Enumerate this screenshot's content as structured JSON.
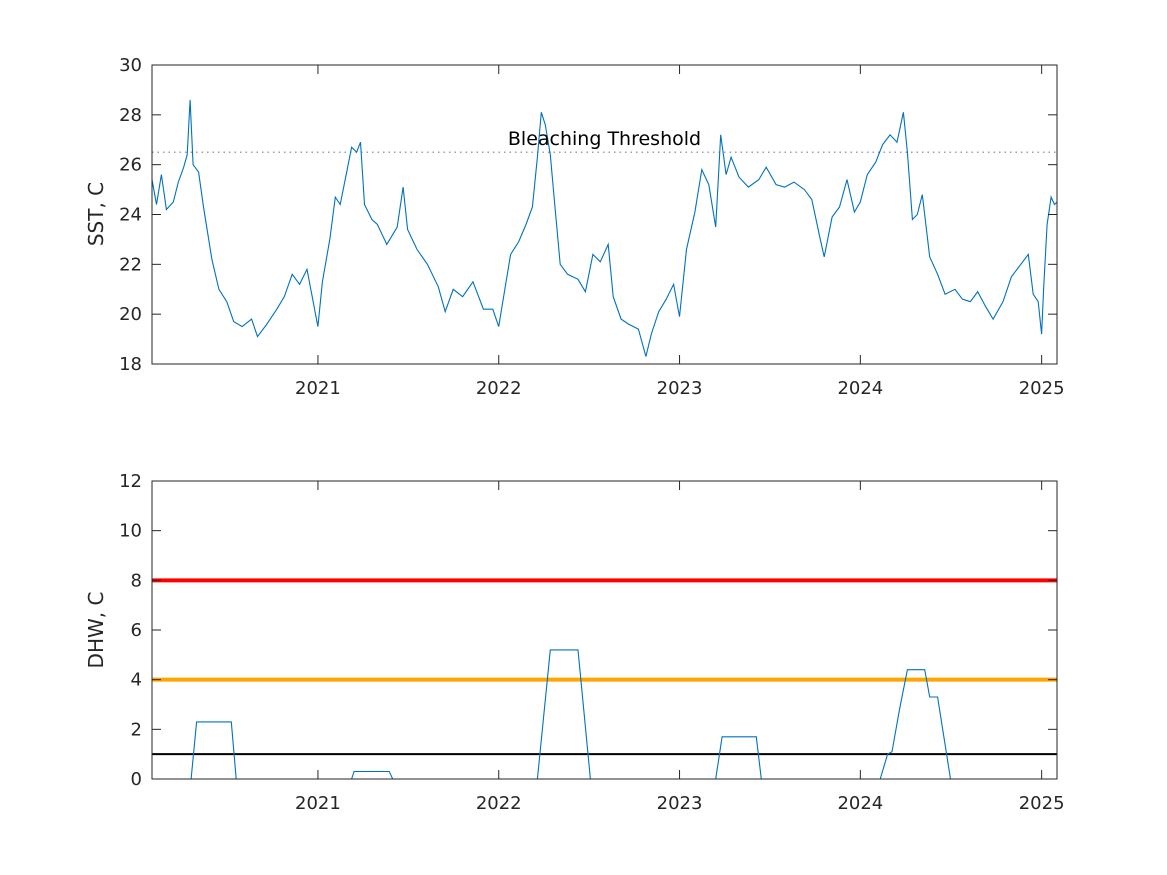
{
  "chart_data": [
    {
      "type": "line",
      "ylabel": "SST, C",
      "xlabel": "",
      "title": "",
      "xlim": [
        "2020-02-01",
        "2025-02-01"
      ],
      "ylim": [
        18,
        30
      ],
      "x_ticks": [
        "2021",
        "2022",
        "2023",
        "2024",
        "2025"
      ],
      "y_ticks": [
        "18",
        "20",
        "22",
        "24",
        "26",
        "28",
        "30"
      ],
      "grid": false,
      "series": [
        {
          "color": "#0072BD",
          "points": [
            [
              "2020-02-01",
              25.4
            ],
            [
              "2020-02-10",
              24.4
            ],
            [
              "2020-02-20",
              25.6
            ],
            [
              "2020-03-01",
              24.2
            ],
            [
              "2020-03-15",
              24.5
            ],
            [
              "2020-03-25",
              25.3
            ],
            [
              "2020-04-05",
              25.9
            ],
            [
              "2020-04-12",
              26.4
            ],
            [
              "2020-04-18",
              28.6
            ],
            [
              "2020-04-24",
              26.0
            ],
            [
              "2020-05-05",
              25.7
            ],
            [
              "2020-05-15",
              24.3
            ],
            [
              "2020-06-01",
              22.2
            ],
            [
              "2020-06-15",
              21.0
            ],
            [
              "2020-07-01",
              20.5
            ],
            [
              "2020-07-15",
              19.7
            ],
            [
              "2020-08-01",
              19.5
            ],
            [
              "2020-08-20",
              19.8
            ],
            [
              "2020-09-01",
              19.1
            ],
            [
              "2020-09-20",
              19.6
            ],
            [
              "2020-10-10",
              20.2
            ],
            [
              "2020-10-25",
              20.7
            ],
            [
              "2020-11-10",
              21.6
            ],
            [
              "2020-11-25",
              21.2
            ],
            [
              "2020-12-10",
              21.8
            ],
            [
              "2021-01-01",
              19.5
            ],
            [
              "2021-01-10",
              21.3
            ],
            [
              "2021-01-25",
              23.0
            ],
            [
              "2021-02-05",
              24.7
            ],
            [
              "2021-02-15",
              24.4
            ],
            [
              "2021-02-28",
              25.7
            ],
            [
              "2021-03-10",
              26.7
            ],
            [
              "2021-03-20",
              26.5
            ],
            [
              "2021-03-28",
              26.9
            ],
            [
              "2021-04-05",
              24.4
            ],
            [
              "2021-04-20",
              23.8
            ],
            [
              "2021-05-01",
              23.6
            ],
            [
              "2021-05-20",
              22.8
            ],
            [
              "2021-06-10",
              23.5
            ],
            [
              "2021-06-22",
              25.1
            ],
            [
              "2021-07-01",
              23.4
            ],
            [
              "2021-07-20",
              22.6
            ],
            [
              "2021-08-10",
              22.0
            ],
            [
              "2021-09-01",
              21.1
            ],
            [
              "2021-09-15",
              20.1
            ],
            [
              "2021-10-01",
              21.0
            ],
            [
              "2021-10-20",
              20.7
            ],
            [
              "2021-11-10",
              21.3
            ],
            [
              "2021-12-01",
              20.2
            ],
            [
              "2021-12-20",
              20.2
            ],
            [
              "2022-01-01",
              19.5
            ],
            [
              "2022-01-10",
              20.6
            ],
            [
              "2022-01-25",
              22.4
            ],
            [
              "2022-02-10",
              22.9
            ],
            [
              "2022-02-25",
              23.6
            ],
            [
              "2022-03-10",
              24.3
            ],
            [
              "2022-03-20",
              26.3
            ],
            [
              "2022-03-28",
              28.1
            ],
            [
              "2022-04-05",
              27.6
            ],
            [
              "2022-04-15",
              26.4
            ],
            [
              "2022-04-25",
              24.2
            ],
            [
              "2022-05-05",
              22.0
            ],
            [
              "2022-05-20",
              21.6
            ],
            [
              "2022-06-10",
              21.4
            ],
            [
              "2022-06-25",
              20.9
            ],
            [
              "2022-07-10",
              22.4
            ],
            [
              "2022-07-25",
              22.1
            ],
            [
              "2022-08-10",
              22.8
            ],
            [
              "2022-08-20",
              20.7
            ],
            [
              "2022-09-05",
              19.8
            ],
            [
              "2022-09-20",
              19.6
            ],
            [
              "2022-10-10",
              19.4
            ],
            [
              "2022-10-25",
              18.3
            ],
            [
              "2022-11-05",
              19.2
            ],
            [
              "2022-11-20",
              20.1
            ],
            [
              "2022-12-05",
              20.6
            ],
            [
              "2022-12-20",
              21.2
            ],
            [
              "2023-01-01",
              19.9
            ],
            [
              "2023-01-15",
              22.6
            ],
            [
              "2023-02-01",
              24.1
            ],
            [
              "2023-02-15",
              25.8
            ],
            [
              "2023-03-01",
              25.2
            ],
            [
              "2023-03-15",
              23.5
            ],
            [
              "2023-03-25",
              27.2
            ],
            [
              "2023-04-05",
              25.6
            ],
            [
              "2023-04-15",
              26.3
            ],
            [
              "2023-05-01",
              25.5
            ],
            [
              "2023-05-20",
              25.1
            ],
            [
              "2023-06-10",
              25.4
            ],
            [
              "2023-06-25",
              25.9
            ],
            [
              "2023-07-15",
              25.2
            ],
            [
              "2023-08-01",
              25.1
            ],
            [
              "2023-08-20",
              25.3
            ],
            [
              "2023-09-10",
              25.0
            ],
            [
              "2023-09-25",
              24.6
            ],
            [
              "2023-10-10",
              23.2
            ],
            [
              "2023-10-20",
              22.3
            ],
            [
              "2023-11-05",
              23.9
            ],
            [
              "2023-11-20",
              24.3
            ],
            [
              "2023-12-05",
              25.4
            ],
            [
              "2023-12-20",
              24.1
            ],
            [
              "2024-01-01",
              24.5
            ],
            [
              "2024-01-15",
              25.6
            ],
            [
              "2024-02-01",
              26.1
            ],
            [
              "2024-02-15",
              26.8
            ],
            [
              "2024-03-01",
              27.2
            ],
            [
              "2024-03-15",
              26.9
            ],
            [
              "2024-03-28",
              28.1
            ],
            [
              "2024-04-05",
              26.5
            ],
            [
              "2024-04-15",
              23.8
            ],
            [
              "2024-04-25",
              24.0
            ],
            [
              "2024-05-05",
              24.8
            ],
            [
              "2024-05-20",
              22.3
            ],
            [
              "2024-06-05",
              21.6
            ],
            [
              "2024-06-20",
              20.8
            ],
            [
              "2024-07-10",
              21.0
            ],
            [
              "2024-07-25",
              20.6
            ],
            [
              "2024-08-10",
              20.5
            ],
            [
              "2024-08-25",
              20.9
            ],
            [
              "2024-09-10",
              20.3
            ],
            [
              "2024-09-25",
              19.8
            ],
            [
              "2024-10-15",
              20.5
            ],
            [
              "2024-11-01",
              21.5
            ],
            [
              "2024-11-20",
              22.0
            ],
            [
              "2024-12-05",
              22.4
            ],
            [
              "2024-12-15",
              20.8
            ],
            [
              "2024-12-25",
              20.5
            ],
            [
              "2025-01-01",
              19.2
            ],
            [
              "2025-01-05",
              21.0
            ],
            [
              "2025-01-12",
              23.6
            ],
            [
              "2025-01-20",
              24.7
            ],
            [
              "2025-01-27",
              24.4
            ],
            [
              "2025-02-01",
              24.5
            ]
          ]
        }
      ],
      "reference_lines": [
        {
          "y": 26.5,
          "style": "dotted",
          "color": "#7a7aa8",
          "label": "Bleaching Threshold"
        }
      ]
    },
    {
      "type": "line",
      "ylabel": "DHW, C",
      "xlabel": "",
      "title": "",
      "xlim": [
        "2020-02-01",
        "2025-02-01"
      ],
      "ylim": [
        0,
        12
      ],
      "x_ticks": [
        "2021",
        "2022",
        "2023",
        "2024",
        "2025"
      ],
      "y_ticks": [
        "0",
        "2",
        "4",
        "6",
        "8",
        "10",
        "12"
      ],
      "grid": false,
      "series": [
        {
          "color": "#0072BD",
          "points": [
            [
              "2020-02-01",
              0
            ],
            [
              "2020-04-20",
              0
            ],
            [
              "2020-05-01",
              2.3
            ],
            [
              "2020-07-10",
              2.3
            ],
            [
              "2020-07-20",
              0
            ],
            [
              "2021-03-10",
              0
            ],
            [
              "2021-03-15",
              0.3
            ],
            [
              "2021-05-25",
              0.3
            ],
            [
              "2021-06-01",
              0
            ],
            [
              "2022-03-20",
              0
            ],
            [
              "2022-04-15",
              5.2
            ],
            [
              "2022-06-10",
              5.2
            ],
            [
              "2022-07-05",
              0
            ],
            [
              "2023-03-15",
              0
            ],
            [
              "2023-03-28",
              1.7
            ],
            [
              "2023-06-05",
              1.7
            ],
            [
              "2023-06-15",
              0
            ],
            [
              "2024-02-10",
              0
            ],
            [
              "2024-02-25",
              1.0
            ],
            [
              "2024-03-05",
              1.1
            ],
            [
              "2024-03-20",
              2.8
            ],
            [
              "2024-04-05",
              4.4
            ],
            [
              "2024-05-10",
              4.4
            ],
            [
              "2024-05-20",
              3.3
            ],
            [
              "2024-06-05",
              3.3
            ],
            [
              "2024-07-01",
              0
            ],
            [
              "2025-02-01",
              0
            ]
          ]
        }
      ],
      "reference_lines": [
        {
          "y": 8,
          "style": "solid",
          "color": "#ff0000"
        },
        {
          "y": 4,
          "style": "solid",
          "color": "#ffa500"
        },
        {
          "y": 1,
          "style": "solid",
          "color": "#000000"
        }
      ]
    }
  ]
}
